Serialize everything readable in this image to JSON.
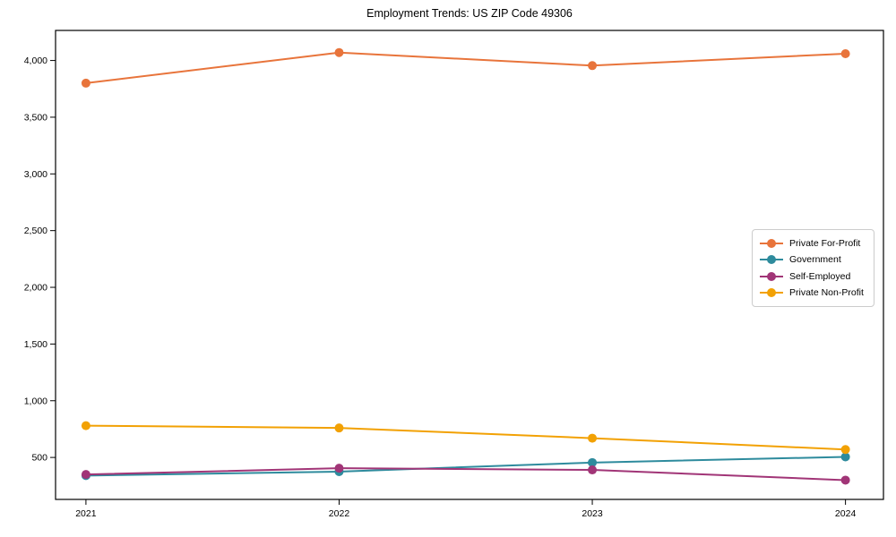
{
  "figure": {
    "background": "#ffffff",
    "frame_color": "#000000",
    "legend_border_color": "#cccccc"
  },
  "chart_data": {
    "type": "line",
    "title": "Employment Trends: US ZIP Code 49306",
    "xlabel": "",
    "ylabel": "",
    "x": [
      2021,
      2022,
      2023,
      2024
    ],
    "x_tick_labels": [
      "2021",
      "2022",
      "2023",
      "2024"
    ],
    "y_ticks": [
      500,
      1000,
      1500,
      2000,
      2500,
      3000,
      3500,
      4000
    ],
    "y_tick_labels": [
      "500",
      "1,000",
      "1,500",
      "2,000",
      "2,500",
      "3,000",
      "3,500",
      "4,000"
    ],
    "xlim": [
      2020.88,
      2024.15
    ],
    "ylim": [
      130,
      4265
    ],
    "grid": false,
    "legend_position": "center-right",
    "marker": "circle",
    "series": [
      {
        "name": "Private For-Profit",
        "color": "#e8743b",
        "values": [
          3800,
          4070,
          3955,
          4060
        ]
      },
      {
        "name": "Government",
        "color": "#2e8b9d",
        "values": [
          340,
          375,
          455,
          505
        ]
      },
      {
        "name": "Self-Employed",
        "color": "#a13577",
        "values": [
          350,
          405,
          390,
          300
        ]
      },
      {
        "name": "Private Non-Profit",
        "color": "#f2a104",
        "values": [
          780,
          760,
          670,
          570
        ]
      }
    ]
  }
}
